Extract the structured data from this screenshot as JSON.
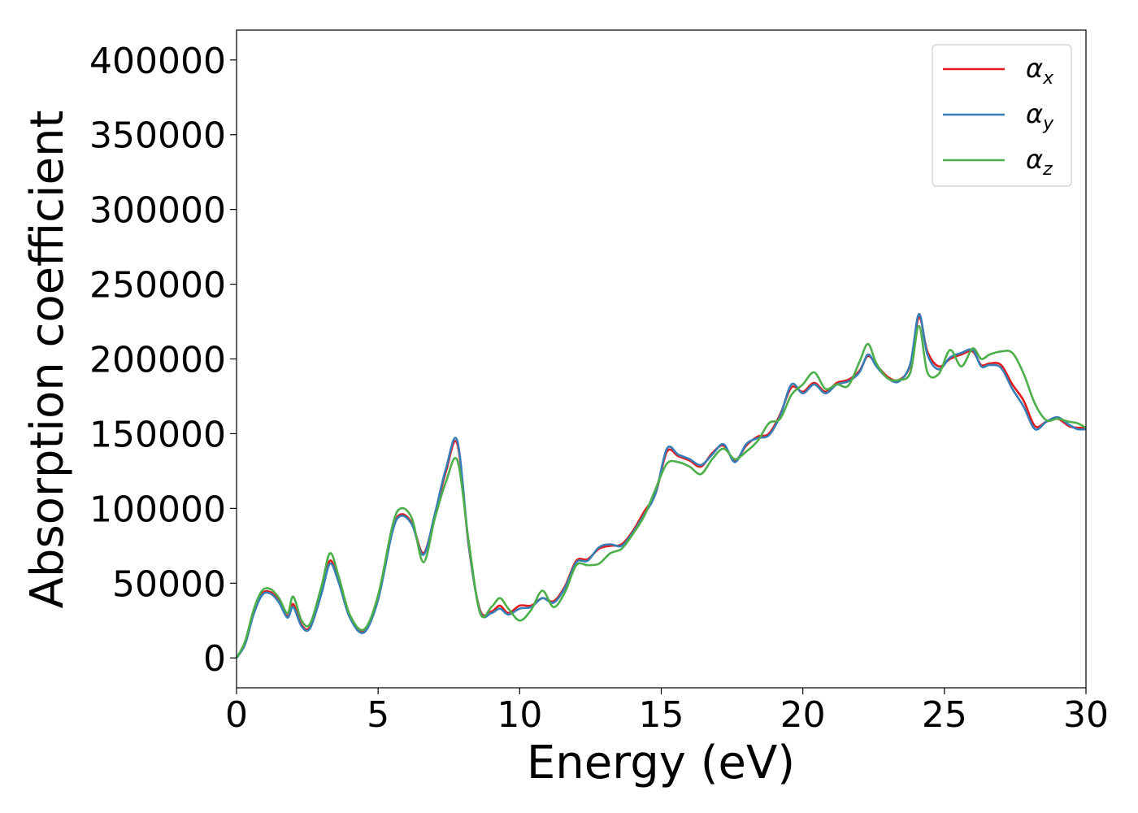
{
  "chart_data": {
    "type": "line",
    "title": "",
    "xlabel": "Energy (eV)",
    "ylabel": "Absorption coefficient",
    "xlim": [
      0,
      30
    ],
    "ylim": [
      -20000,
      420000
    ],
    "xticks": [
      0,
      5,
      10,
      15,
      20,
      25,
      30
    ],
    "yticks": [
      0,
      50000,
      100000,
      150000,
      200000,
      250000,
      300000,
      350000,
      400000
    ],
    "grid": false,
    "legend_position": "top-right",
    "colors": {
      "x": "#e41a1c",
      "y": "#377eb8",
      "z": "#4daf4a"
    },
    "series": [
      {
        "name": "α_x",
        "symbol": "α",
        "subscript": "x",
        "color": "#e41a1c",
        "x": [
          0,
          0.3,
          0.6,
          0.9,
          1.2,
          1.5,
          1.8,
          2.0,
          2.3,
          2.6,
          3.0,
          3.3,
          3.6,
          4.0,
          4.5,
          5.0,
          5.5,
          5.8,
          6.2,
          6.6,
          7.0,
          7.4,
          7.8,
          8.2,
          8.6,
          9.0,
          9.3,
          9.6,
          10.0,
          10.4,
          10.8,
          11.2,
          11.6,
          12.0,
          12.4,
          12.8,
          13.2,
          13.6,
          14.0,
          14.4,
          14.8,
          15.2,
          15.6,
          16.0,
          16.4,
          16.8,
          17.2,
          17.6,
          18.0,
          18.4,
          18.8,
          19.2,
          19.6,
          20.0,
          20.4,
          20.8,
          21.2,
          21.6,
          22.0,
          22.3,
          22.6,
          23.0,
          23.4,
          23.8,
          24.1,
          24.4,
          24.8,
          25.2,
          25.6,
          26.0,
          26.3,
          26.6,
          27.0,
          27.4,
          27.8,
          28.2,
          28.6,
          29.0,
          29.4,
          29.7,
          30.0
        ],
        "y": [
          0,
          10000,
          30000,
          43000,
          44000,
          38000,
          28000,
          36000,
          22000,
          21000,
          45000,
          65000,
          52000,
          28000,
          18000,
          40000,
          85000,
          96000,
          90000,
          70000,
          95000,
          125000,
          143000,
          75000,
          32000,
          31000,
          35000,
          30000,
          35000,
          35000,
          40000,
          38000,
          48000,
          65000,
          66000,
          73000,
          75000,
          76000,
          85000,
          98000,
          110000,
          138000,
          135000,
          132000,
          128000,
          137000,
          142000,
          132000,
          142000,
          148000,
          150000,
          163000,
          181000,
          178000,
          184000,
          178000,
          184000,
          186000,
          192000,
          202000,
          196000,
          188000,
          186000,
          196000,
          228000,
          205000,
          195000,
          200000,
          203000,
          205000,
          196000,
          197000,
          196000,
          183000,
          172000,
          155000,
          158000,
          160000,
          155000,
          154000,
          154000
        ]
      },
      {
        "name": "α_y",
        "symbol": "α",
        "subscript": "y",
        "color": "#377eb8",
        "x": [
          0,
          0.3,
          0.6,
          0.9,
          1.2,
          1.5,
          1.8,
          2.0,
          2.3,
          2.6,
          3.0,
          3.3,
          3.6,
          4.0,
          4.5,
          5.0,
          5.5,
          5.8,
          6.2,
          6.6,
          7.0,
          7.4,
          7.8,
          8.2,
          8.6,
          9.0,
          9.3,
          9.6,
          10.0,
          10.4,
          10.8,
          11.2,
          11.6,
          12.0,
          12.4,
          12.8,
          13.2,
          13.6,
          14.0,
          14.4,
          14.8,
          15.2,
          15.6,
          16.0,
          16.4,
          16.8,
          17.2,
          17.6,
          18.0,
          18.4,
          18.8,
          19.2,
          19.6,
          20.0,
          20.4,
          20.8,
          21.2,
          21.6,
          22.0,
          22.3,
          22.6,
          23.0,
          23.4,
          23.8,
          24.1,
          24.4,
          24.8,
          25.2,
          25.6,
          26.0,
          26.3,
          26.6,
          27.0,
          27.4,
          27.8,
          28.2,
          28.6,
          29.0,
          29.4,
          29.7,
          30.0
        ],
        "y": [
          0,
          9000,
          29000,
          42000,
          43000,
          37000,
          27000,
          34000,
          21000,
          20000,
          43000,
          63000,
          51000,
          27000,
          17000,
          39000,
          84000,
          95000,
          89000,
          69000,
          96000,
          127000,
          145000,
          76000,
          31000,
          30000,
          33000,
          29000,
          33000,
          34000,
          40000,
          37000,
          47000,
          64000,
          65000,
          74000,
          76000,
          75000,
          84000,
          96000,
          110000,
          140000,
          136000,
          133000,
          129000,
          136000,
          143000,
          131000,
          143000,
          147000,
          149000,
          162000,
          183000,
          177000,
          183000,
          177000,
          183000,
          185000,
          191000,
          203000,
          195000,
          187000,
          185000,
          197000,
          230000,
          203000,
          193000,
          201000,
          204000,
          206000,
          195000,
          196000,
          194000,
          180000,
          168000,
          153000,
          158000,
          161000,
          156000,
          153000,
          153000
        ]
      },
      {
        "name": "α_z",
        "symbol": "α",
        "subscript": "z",
        "color": "#4daf4a",
        "x": [
          0,
          0.3,
          0.6,
          0.9,
          1.2,
          1.5,
          1.8,
          2.0,
          2.3,
          2.6,
          3.0,
          3.3,
          3.6,
          4.0,
          4.5,
          5.0,
          5.5,
          5.8,
          6.2,
          6.6,
          7.0,
          7.4,
          7.8,
          8.2,
          8.6,
          9.0,
          9.3,
          9.6,
          10.0,
          10.4,
          10.8,
          11.2,
          11.6,
          12.0,
          12.4,
          12.8,
          13.2,
          13.6,
          14.0,
          14.4,
          14.8,
          15.2,
          15.6,
          16.0,
          16.4,
          16.8,
          17.2,
          17.6,
          18.0,
          18.4,
          18.8,
          19.2,
          19.6,
          20.0,
          20.4,
          20.8,
          21.2,
          21.6,
          22.0,
          22.3,
          22.6,
          23.0,
          23.4,
          23.8,
          24.1,
          24.4,
          24.8,
          25.2,
          25.6,
          26.0,
          26.3,
          26.6,
          27.0,
          27.4,
          27.8,
          28.2,
          28.6,
          29.0,
          29.4,
          29.7,
          30.0
        ],
        "y": [
          0,
          11000,
          32000,
          45000,
          46000,
          40000,
          30000,
          41000,
          25000,
          23000,
          48000,
          70000,
          55000,
          29000,
          19000,
          42000,
          88000,
          100000,
          93000,
          64000,
          93000,
          118000,
          132000,
          78000,
          30000,
          34000,
          40000,
          33000,
          25000,
          32000,
          45000,
          34000,
          44000,
          62000,
          62000,
          63000,
          70000,
          73000,
          83000,
          95000,
          113000,
          130000,
          131000,
          128000,
          123000,
          133000,
          140000,
          133000,
          138000,
          145000,
          157000,
          160000,
          176000,
          183000,
          191000,
          180000,
          183000,
          182000,
          198000,
          210000,
          197000,
          187000,
          186000,
          191000,
          222000,
          191000,
          190000,
          206000,
          195000,
          207000,
          200000,
          203000,
          205000,
          204000,
          190000,
          170000,
          159000,
          160000,
          158000,
          157000,
          154000
        ]
      }
    ]
  }
}
